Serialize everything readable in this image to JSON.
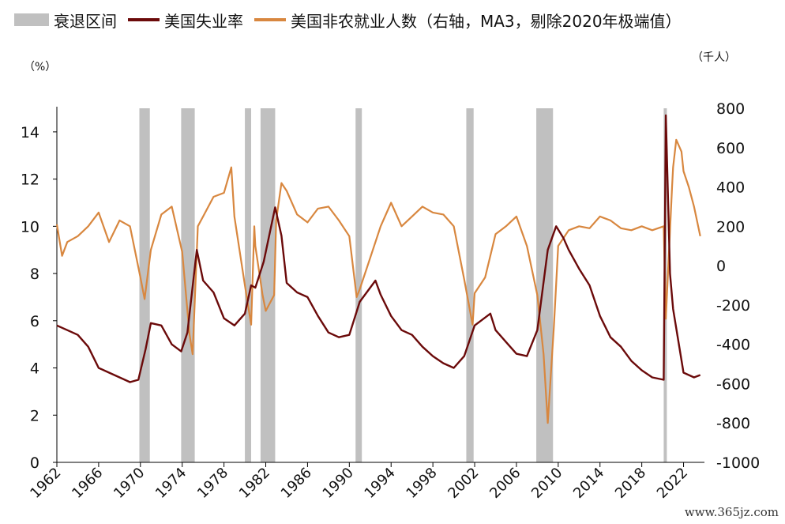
{
  "legend": {
    "recession": "衰退区间",
    "unemployment": "美国失业率",
    "payrolls": "美国非农就业人数（右轴，MA3，剔除2020年极端值）"
  },
  "units": {
    "left": "（%）",
    "right": "（千人）"
  },
  "watermark": "www.365jz.com",
  "colors": {
    "recession": "#c0c0c0",
    "unemployment": "#6b0a0a",
    "payrolls": "#d8873f",
    "axis": "#000000",
    "text": "#111111"
  },
  "chart_data": {
    "type": "line",
    "x_axis": {
      "min": 1962,
      "max": 2024,
      "ticks": [
        1962,
        1966,
        1970,
        1974,
        1978,
        1982,
        1986,
        1990,
        1994,
        1998,
        2002,
        2006,
        2010,
        2014,
        2018,
        2022
      ]
    },
    "y_left": {
      "label": "%",
      "min": 0,
      "max": 15,
      "ticks": [
        0,
        2,
        4,
        6,
        8,
        10,
        12,
        14
      ]
    },
    "y_right": {
      "label": "千人",
      "min": -1000,
      "max": 800,
      "ticks": [
        -1000,
        -800,
        -600,
        -400,
        -200,
        0,
        200,
        400,
        600,
        800
      ]
    },
    "grid": false,
    "legend_position": "top-left",
    "recessions": [
      [
        1969.9,
        1970.9
      ],
      [
        1973.9,
        1975.2
      ],
      [
        1980.0,
        1980.6
      ],
      [
        1981.5,
        1982.9
      ],
      [
        1990.6,
        1991.2
      ],
      [
        2001.2,
        2001.9
      ],
      [
        2007.9,
        2009.5
      ],
      [
        2020.1,
        2020.4
      ]
    ],
    "series": [
      {
        "name": "美国失业率",
        "axis": "left",
        "points": [
          [
            1962,
            5.8
          ],
          [
            1963,
            5.6
          ],
          [
            1964,
            5.4
          ],
          [
            1965,
            4.9
          ],
          [
            1966,
            4.0
          ],
          [
            1967,
            3.8
          ],
          [
            1968,
            3.6
          ],
          [
            1969,
            3.4
          ],
          [
            1969.8,
            3.5
          ],
          [
            1970.5,
            4.8
          ],
          [
            1971,
            5.9
          ],
          [
            1972,
            5.8
          ],
          [
            1973,
            5.0
          ],
          [
            1973.9,
            4.7
          ],
          [
            1974.5,
            5.5
          ],
          [
            1975.4,
            9.0
          ],
          [
            1976,
            7.7
          ],
          [
            1977,
            7.2
          ],
          [
            1978,
            6.1
          ],
          [
            1979,
            5.8
          ],
          [
            1980,
            6.3
          ],
          [
            1980.6,
            7.5
          ],
          [
            1981,
            7.4
          ],
          [
            1981.8,
            8.5
          ],
          [
            1982.9,
            10.8
          ],
          [
            1983.5,
            9.6
          ],
          [
            1984,
            7.6
          ],
          [
            1985,
            7.2
          ],
          [
            1986,
            7.0
          ],
          [
            1987,
            6.2
          ],
          [
            1988,
            5.5
          ],
          [
            1989,
            5.3
          ],
          [
            1990,
            5.4
          ],
          [
            1991,
            6.8
          ],
          [
            1992.5,
            7.7
          ],
          [
            1993,
            7.1
          ],
          [
            1994,
            6.2
          ],
          [
            1995,
            5.6
          ],
          [
            1996,
            5.4
          ],
          [
            1997,
            4.9
          ],
          [
            1998,
            4.5
          ],
          [
            1999,
            4.2
          ],
          [
            2000,
            4.0
          ],
          [
            2001,
            4.5
          ],
          [
            2002,
            5.8
          ],
          [
            2003.5,
            6.3
          ],
          [
            2004,
            5.6
          ],
          [
            2005,
            5.1
          ],
          [
            2006,
            4.6
          ],
          [
            2007,
            4.5
          ],
          [
            2008,
            5.6
          ],
          [
            2009,
            9.0
          ],
          [
            2009.8,
            10.0
          ],
          [
            2010.5,
            9.5
          ],
          [
            2011,
            9.0
          ],
          [
            2012,
            8.2
          ],
          [
            2013,
            7.5
          ],
          [
            2014,
            6.2
          ],
          [
            2015,
            5.3
          ],
          [
            2016,
            4.9
          ],
          [
            2017,
            4.3
          ],
          [
            2018,
            3.9
          ],
          [
            2019,
            3.6
          ],
          [
            2020.1,
            3.5
          ],
          [
            2020.3,
            14.7
          ],
          [
            2020.7,
            8.0
          ],
          [
            2021,
            6.5
          ],
          [
            2022,
            3.8
          ],
          [
            2023,
            3.6
          ],
          [
            2023.6,
            3.7
          ]
        ]
      },
      {
        "name": "美国非农就业人数（右轴，MA3，剔除2020年极端值）",
        "axis": "right",
        "points": [
          [
            1962,
            210
          ],
          [
            1962.5,
            50
          ],
          [
            1963,
            120
          ],
          [
            1964,
            150
          ],
          [
            1965,
            200
          ],
          [
            1966,
            270
          ],
          [
            1967,
            120
          ],
          [
            1968,
            230
          ],
          [
            1969,
            200
          ],
          [
            1970,
            -60
          ],
          [
            1970.4,
            -170
          ],
          [
            1971,
            80
          ],
          [
            1972,
            260
          ],
          [
            1973,
            300
          ],
          [
            1974,
            70
          ],
          [
            1974.7,
            -350
          ],
          [
            1975,
            -450
          ],
          [
            1975.5,
            200
          ],
          [
            1976,
            250
          ],
          [
            1977,
            350
          ],
          [
            1978,
            370
          ],
          [
            1978.7,
            500
          ],
          [
            1979,
            250
          ],
          [
            1980,
            -100
          ],
          [
            1980.6,
            -300
          ],
          [
            1980.9,
            200
          ],
          [
            1981,
            100
          ],
          [
            1981.7,
            -150
          ],
          [
            1982,
            -230
          ],
          [
            1982.8,
            -150
          ],
          [
            1983,
            230
          ],
          [
            1983.5,
            420
          ],
          [
            1984,
            380
          ],
          [
            1985,
            260
          ],
          [
            1986,
            220
          ],
          [
            1987,
            290
          ],
          [
            1988,
            300
          ],
          [
            1989,
            230
          ],
          [
            1990,
            150
          ],
          [
            1990.7,
            -160
          ],
          [
            1991,
            -120
          ],
          [
            1992,
            40
          ],
          [
            1993,
            200
          ],
          [
            1994,
            320
          ],
          [
            1995,
            200
          ],
          [
            1996,
            250
          ],
          [
            1997,
            300
          ],
          [
            1998,
            270
          ],
          [
            1999,
            260
          ],
          [
            2000,
            200
          ],
          [
            2001,
            -70
          ],
          [
            2001.8,
            -300
          ],
          [
            2002,
            -140
          ],
          [
            2003,
            -60
          ],
          [
            2004,
            160
          ],
          [
            2005,
            200
          ],
          [
            2006,
            250
          ],
          [
            2007,
            100
          ],
          [
            2008,
            -150
          ],
          [
            2008.6,
            -450
          ],
          [
            2009,
            -800
          ],
          [
            2009.6,
            -300
          ],
          [
            2010,
            100
          ],
          [
            2011,
            180
          ],
          [
            2012,
            200
          ],
          [
            2013,
            190
          ],
          [
            2014,
            250
          ],
          [
            2015,
            230
          ],
          [
            2016,
            190
          ],
          [
            2017,
            180
          ],
          [
            2018,
            200
          ],
          [
            2019,
            180
          ],
          [
            2020.1,
            200
          ],
          [
            2020.3,
            -270
          ],
          [
            2020.9,
            400
          ],
          [
            2021,
            500
          ],
          [
            2021.3,
            640
          ],
          [
            2021.8,
            580
          ],
          [
            2022,
            480
          ],
          [
            2022.5,
            400
          ],
          [
            2023,
            300
          ],
          [
            2023.6,
            150
          ]
        ]
      }
    ]
  }
}
